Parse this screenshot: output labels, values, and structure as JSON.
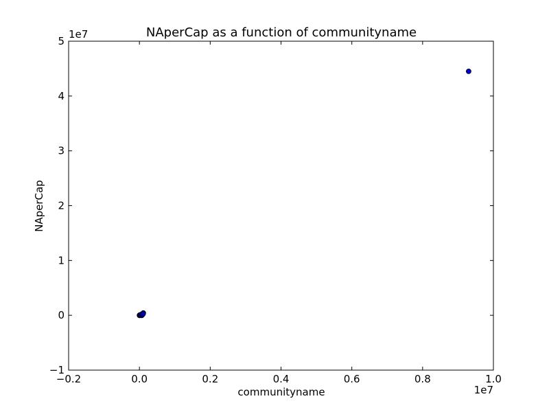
{
  "chart_data": {
    "type": "scatter",
    "title": "NAperCap as a function of communityname",
    "xlabel": "communityname",
    "ylabel": "NAperCap",
    "xlim": [
      -2000000,
      10000000
    ],
    "ylim": [
      -10000000,
      50000000
    ],
    "x_ticks": [
      "−0.2",
      "0.0",
      "0.2",
      "0.4",
      "0.6",
      "0.8",
      "1.0"
    ],
    "x_tick_values": [
      -2000000,
      0,
      2000000,
      4000000,
      6000000,
      8000000,
      10000000
    ],
    "y_ticks": [
      "−1",
      "0",
      "1",
      "2",
      "3",
      "4",
      "5"
    ],
    "y_tick_values": [
      -10000000,
      0,
      10000000,
      20000000,
      30000000,
      40000000,
      50000000
    ],
    "x_multiplier": "1e7",
    "y_multiplier": "1e7",
    "grid": false,
    "marker_color": "#0000cc",
    "marker_edge": "#000000",
    "points": [
      {
        "x": 9300000,
        "y": 44500000
      },
      {
        "x": 0,
        "y": 0
      },
      {
        "x": 10000,
        "y": 20000
      },
      {
        "x": 20000,
        "y": -10000
      },
      {
        "x": 30000,
        "y": 40000
      },
      {
        "x": 40000,
        "y": 10000
      },
      {
        "x": 50000,
        "y": 80000
      },
      {
        "x": 60000,
        "y": 30000
      },
      {
        "x": 70000,
        "y": 120000
      },
      {
        "x": 80000,
        "y": 200000
      },
      {
        "x": 90000,
        "y": 280000
      },
      {
        "x": 100000,
        "y": 350000
      },
      {
        "x": 110000,
        "y": 420000
      },
      {
        "x": 5000,
        "y": -30000
      },
      {
        "x": 15000,
        "y": 60000
      },
      {
        "x": 25000,
        "y": 5000
      },
      {
        "x": 45000,
        "y": 150000
      },
      {
        "x": 65000,
        "y": -20000
      },
      {
        "x": 85000,
        "y": 100000
      },
      {
        "x": 105000,
        "y": 250000
      }
    ]
  }
}
